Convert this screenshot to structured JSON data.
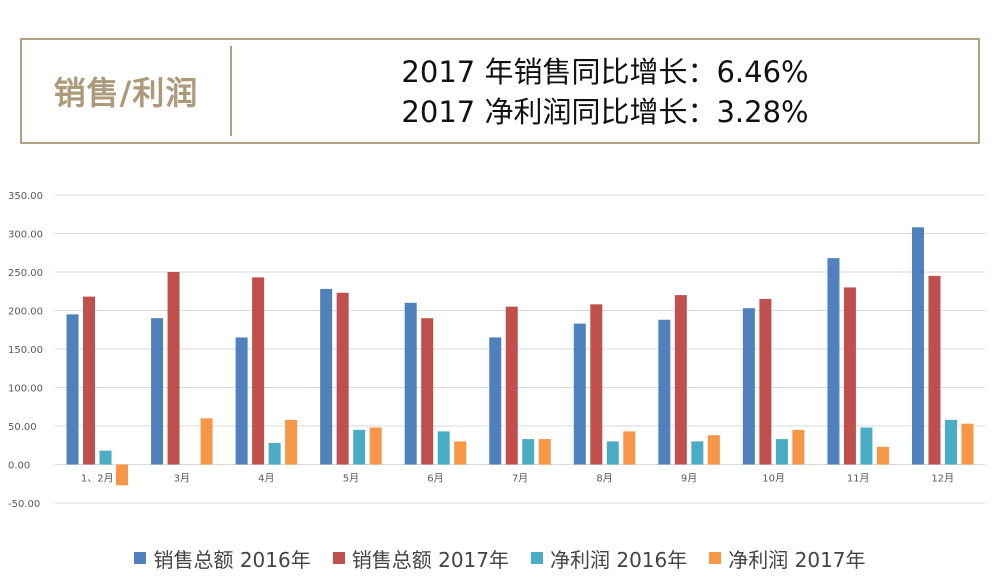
{
  "header": {
    "label": "销售/利润",
    "line1": "2017 年销售同比增长：6.46%",
    "line2": "2017 净利润同比增长：3.28%"
  },
  "colors": {
    "accent": "#b3a285",
    "grid": "#d9d9d9",
    "axis_text": "#595959"
  },
  "chart_data": {
    "type": "bar",
    "categories": [
      "1、2月",
      "3月",
      "4月",
      "5月",
      "6月",
      "7月",
      "8月",
      "9月",
      "10月",
      "11月",
      "12月"
    ],
    "y_ticks": [
      "350.00",
      "300.00",
      "250.00",
      "200.00",
      "150.00",
      "100.00",
      "50.00",
      "0.00",
      "-50.00"
    ],
    "ylim": [
      -50,
      350
    ],
    "grid": true,
    "legend_position": "bottom",
    "series": [
      {
        "name": "销售总额 2016年",
        "color": "#4f81bd",
        "values": [
          195,
          190,
          165,
          228,
          210,
          165,
          183,
          188,
          203,
          268,
          308
        ]
      },
      {
        "name": "销售总额 2017年",
        "color": "#c0504d",
        "values": [
          218,
          250,
          243,
          223,
          190,
          205,
          208,
          220,
          215,
          230,
          245
        ]
      },
      {
        "name": "净利润 2016年",
        "color": "#4bacc6",
        "values": [
          18,
          null,
          28,
          45,
          43,
          33,
          30,
          30,
          33,
          48,
          58
        ]
      },
      {
        "name": "净利润 2017年",
        "color": "#f79646",
        "values": [
          -27,
          60,
          58,
          48,
          30,
          33,
          43,
          38,
          45,
          23,
          53
        ]
      }
    ]
  }
}
